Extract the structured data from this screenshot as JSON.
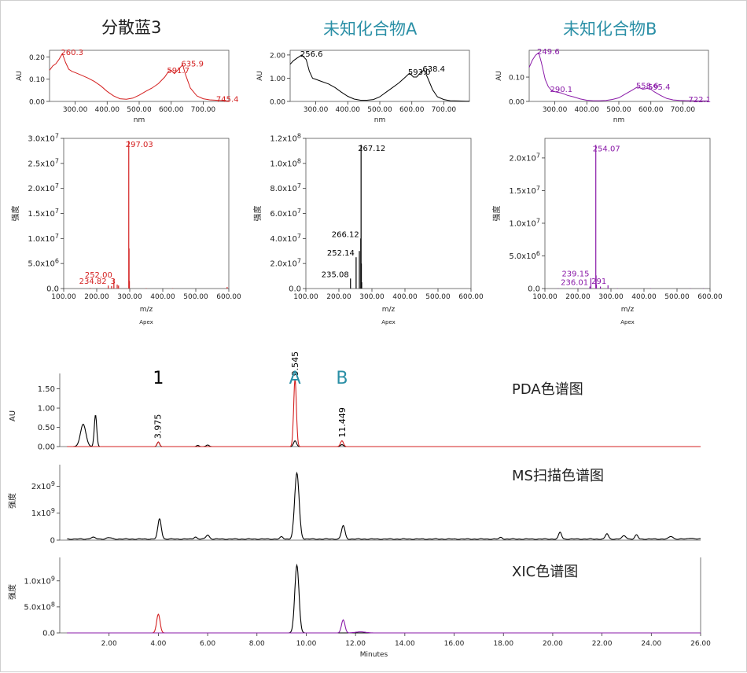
{
  "titles": {
    "col1": "分散蓝3",
    "col2": "未知化合物A",
    "col3": "未知化合物B"
  },
  "colors": {
    "red": "#d42020",
    "black": "#000000",
    "purple": "#8a1aa8",
    "teal": "#2a8fa6",
    "blue": "#3050c0"
  },
  "chart_data": [
    {
      "id": "uv1",
      "type": "line",
      "color": "red",
      "xlabel": "nm",
      "ylabel": "AU",
      "xlim": [
        220,
        780
      ],
      "ylim": [
        0,
        0.23
      ],
      "xticks": [
        300,
        400,
        500,
        600,
        700
      ],
      "xtick_labels": [
        "300.00",
        "400.00",
        "500.00",
        "600.00",
        "700.00"
      ],
      "yticks": [
        0,
        0.1,
        0.2
      ],
      "ytick_labels": [
        "0.00",
        "0.10",
        "0.20"
      ],
      "x": [
        220,
        230,
        240,
        250,
        260,
        270,
        280,
        290,
        300,
        320,
        340,
        360,
        380,
        400,
        420,
        440,
        460,
        480,
        500,
        520,
        540,
        560,
        580,
        591.7,
        600,
        610,
        620,
        635.9,
        645,
        660,
        680,
        700,
        720,
        745.4,
        770,
        780
      ],
      "y": [
        0.14,
        0.16,
        0.17,
        0.19,
        0.215,
        0.175,
        0.145,
        0.135,
        0.13,
        0.118,
        0.105,
        0.09,
        0.07,
        0.045,
        0.025,
        0.012,
        0.01,
        0.015,
        0.028,
        0.045,
        0.06,
        0.08,
        0.11,
        0.135,
        0.14,
        0.125,
        0.14,
        0.165,
        0.12,
        0.06,
        0.025,
        0.012,
        0.007,
        0.005,
        0.003,
        0.002
      ],
      "peak_labels": [
        {
          "x": 260.3,
          "y": 0.215,
          "text": "260.3"
        },
        {
          "x": 591.7,
          "y": 0.135,
          "text": "591.7"
        },
        {
          "x": 635.9,
          "y": 0.165,
          "text": "635.9"
        },
        {
          "x": 745.4,
          "y": 0.005,
          "text": "745.4"
        }
      ]
    },
    {
      "id": "uv2",
      "type": "line",
      "color": "black",
      "xlabel": "nm",
      "ylabel": "AU",
      "xlim": [
        220,
        780
      ],
      "ylim": [
        0,
        2.2
      ],
      "xticks": [
        300,
        400,
        500,
        600,
        700
      ],
      "xtick_labels": [
        "300.00",
        "400.00",
        "500.00",
        "600.00",
        "700.00"
      ],
      "yticks": [
        0,
        1,
        2
      ],
      "ytick_labels": [
        "0.00",
        "1.00",
        "2.00"
      ],
      "x": [
        220,
        230,
        240,
        256.6,
        270,
        280,
        290,
        300,
        320,
        340,
        360,
        380,
        400,
        420,
        440,
        460,
        480,
        500,
        520,
        540,
        560,
        580,
        593,
        605,
        615,
        625,
        638.4,
        650,
        665,
        680,
        700,
        720,
        745,
        770,
        780
      ],
      "y": [
        1.6,
        1.75,
        1.85,
        2.0,
        1.8,
        1.3,
        1.0,
        0.95,
        0.85,
        0.75,
        0.6,
        0.4,
        0.22,
        0.1,
        0.05,
        0.05,
        0.08,
        0.2,
        0.4,
        0.6,
        0.8,
        1.05,
        1.22,
        1.05,
        1.05,
        1.2,
        1.35,
        1.0,
        0.5,
        0.2,
        0.08,
        0.03,
        0.02,
        0.01,
        0.01
      ],
      "peak_labels": [
        {
          "x": 256.6,
          "y": 2.0,
          "text": "256.6"
        },
        {
          "x": 593.0,
          "y": 1.22,
          "text": "593.0"
        },
        {
          "x": 638.4,
          "y": 1.35,
          "text": "638.4"
        }
      ]
    },
    {
      "id": "uv3",
      "type": "line",
      "color": "purple",
      "xlabel": "nm",
      "ylabel": "AU",
      "xlim": [
        220,
        780
      ],
      "ylim": [
        0,
        0.21
      ],
      "xticks": [
        300,
        400,
        500,
        600,
        700
      ],
      "xtick_labels": [
        "300.00",
        "400.00",
        "500.00",
        "600.00",
        "700.00"
      ],
      "yticks": [
        0,
        0.1
      ],
      "ytick_labels": [
        "0.00",
        "0.10"
      ],
      "x": [
        220,
        230,
        240,
        249.6,
        258,
        270,
        280,
        290.1,
        300,
        320,
        340,
        360,
        380,
        400,
        420,
        440,
        460,
        480,
        500,
        520,
        540,
        558.6,
        575,
        595.4,
        610,
        630,
        650,
        670,
        690,
        710,
        722.1,
        750,
        780
      ],
      "y": [
        0.14,
        0.17,
        0.19,
        0.2,
        0.16,
        0.09,
        0.06,
        0.045,
        0.04,
        0.035,
        0.025,
        0.018,
        0.01,
        0.005,
        0.003,
        0.003,
        0.004,
        0.008,
        0.015,
        0.03,
        0.045,
        0.06,
        0.05,
        0.055,
        0.04,
        0.025,
        0.012,
        0.006,
        0.004,
        0.003,
        0.003,
        0.002,
        0.002
      ],
      "peak_labels": [
        {
          "x": 249.6,
          "y": 0.2,
          "text": "249.6"
        },
        {
          "x": 290.1,
          "y": 0.045,
          "text": "290.1"
        },
        {
          "x": 558.6,
          "y": 0.06,
          "text": "558.6"
        },
        {
          "x": 595.4,
          "y": 0.055,
          "text": "595.4"
        },
        {
          "x": 722.1,
          "y": 0.003,
          "text": "722.1"
        }
      ]
    },
    {
      "id": "ms1",
      "type": "bar",
      "color": "red",
      "xlabel": "m/z",
      "ylabel": "强度",
      "footer": "Apex",
      "xlim": [
        100,
        600
      ],
      "ylim": [
        0,
        30000000.0
      ],
      "xticks": [
        100,
        200,
        300,
        400,
        500,
        600
      ],
      "xtick_labels": [
        "100.00",
        "200.00",
        "300.00",
        "400.00",
        "500.00",
        "600.00"
      ],
      "yticks": [
        0,
        5000000.0,
        10000000.0,
        15000000.0,
        20000000.0,
        25000000.0,
        30000000.0
      ],
      "ytick_labels": [
        [
          "0.0",
          ""
        ],
        [
          "5.0x10",
          "6"
        ],
        [
          "1.0x10",
          "7"
        ],
        [
          "1.5x10",
          "7"
        ],
        [
          "2.0x10",
          "7"
        ],
        [
          "2.5x10",
          "7"
        ],
        [
          "3.0x10",
          "7"
        ]
      ],
      "peaks": [
        [
          180,
          100000.0
        ],
        [
          234.82,
          600000.0
        ],
        [
          245,
          500000.0
        ],
        [
          252.0,
          1900000.0
        ],
        [
          262,
          800000.0
        ],
        [
          266,
          600000.0
        ],
        [
          297.03,
          29500000.0
        ],
        [
          298,
          8000000.0
        ],
        [
          299,
          1500000.0
        ],
        [
          350,
          80000.0
        ],
        [
          430,
          50000.0
        ],
        [
          595,
          300000.0
        ]
      ],
      "peak_labels": [
        {
          "x": 297.03,
          "y": 29500000.0,
          "text": "297.03"
        },
        {
          "x": 252.0,
          "y": 1900000.0,
          "text": "252.00"
        },
        {
          "x": 234.82,
          "y": 600000.0,
          "text": "234.82"
        },
        {
          "x": 262,
          "y": 600000.0,
          "text": "3"
        }
      ]
    },
    {
      "id": "ms2",
      "type": "bar",
      "color": "black",
      "xlabel": "m/z",
      "ylabel": "强度",
      "footer": "Apex",
      "xlim": [
        100,
        600
      ],
      "ylim": [
        0,
        120000000.0
      ],
      "xticks": [
        100,
        200,
        300,
        400,
        500,
        600
      ],
      "xtick_labels": [
        "100.00",
        "200.00",
        "300.00",
        "400.00",
        "500.00",
        "600.00"
      ],
      "yticks": [
        0,
        20000000.0,
        40000000.0,
        60000000.0,
        80000000.0,
        100000000.0,
        120000000.0
      ],
      "ytick_labels": [
        [
          "0.0",
          ""
        ],
        [
          "2.0x10",
          "7"
        ],
        [
          "4.0x10",
          "7"
        ],
        [
          "6.0x10",
          "7"
        ],
        [
          "8.0x10",
          "7"
        ],
        [
          "1.0x10",
          "8"
        ],
        [
          "1.2x10",
          "8"
        ]
      ],
      "peaks": [
        [
          235.08,
          8000000.0
        ],
        [
          252.14,
          25000000.0
        ],
        [
          262,
          30000000.0
        ],
        [
          266.12,
          40000000.0
        ],
        [
          267.12,
          115000000.0
        ],
        [
          268,
          20000000.0
        ],
        [
          269,
          5000000.0
        ]
      ],
      "peak_labels": [
        {
          "x": 267.12,
          "y": 115000000.0,
          "text": "267.12"
        },
        {
          "x": 266.12,
          "y": 40000000.0,
          "text": "266.12"
        },
        {
          "x": 252.14,
          "y": 25000000.0,
          "text": "252.14"
        },
        {
          "x": 235.08,
          "y": 8000000.0,
          "text": "235.08"
        }
      ]
    },
    {
      "id": "ms3",
      "type": "bar",
      "color": "purple",
      "xlabel": "m/z",
      "ylabel": "强度",
      "footer": "Apex",
      "xlim": [
        100,
        600
      ],
      "ylim": [
        0,
        23000000.0
      ],
      "xticks": [
        100,
        200,
        300,
        400,
        500,
        600
      ],
      "xtick_labels": [
        "100.00",
        "200.00",
        "300.00",
        "400.00",
        "500.00",
        "600.00"
      ],
      "yticks": [
        0,
        5000000.0,
        10000000.0,
        15000000.0,
        20000000.0
      ],
      "ytick_labels": [
        [
          "0.0",
          ""
        ],
        [
          "5.0x10",
          "6"
        ],
        [
          "1.0x10",
          "7"
        ],
        [
          "1.5x10",
          "7"
        ],
        [
          "2.0x10",
          "7"
        ]
      ],
      "peaks": [
        [
          140,
          50000.0
        ],
        [
          200,
          50000.0
        ],
        [
          236.01,
          300000.0
        ],
        [
          239.15,
          1600000.0
        ],
        [
          254.07,
          22000000.0
        ],
        [
          255,
          2000000.0
        ],
        [
          256,
          600000.0
        ],
        [
          268,
          300000.0
        ],
        [
          291,
          500000.0
        ],
        [
          320,
          50000.0
        ],
        [
          420,
          50000.0
        ],
        [
          540,
          50000.0
        ],
        [
          580,
          50000.0
        ]
      ],
      "peak_labels": [
        {
          "x": 254.07,
          "y": 22000000.0,
          "text": "254.07"
        },
        {
          "x": 239.15,
          "y": 1600000.0,
          "text": "239.15"
        },
        {
          "x": 236.01,
          "y": 300000.0,
          "text": "236.01"
        },
        {
          "x": 291,
          "y": 500000.0,
          "text": "291"
        }
      ]
    },
    {
      "id": "pda",
      "type": "line",
      "ylabel": "AU",
      "label": "PDA色谱图",
      "xlim": [
        0,
        26
      ],
      "ylim": [
        0,
        1.9
      ],
      "yticks": [
        0,
        0.5,
        1.0,
        1.5
      ],
      "ytick_labels": [
        "0.00",
        "0.50",
        "1.00",
        "1.50"
      ],
      "series": [
        {
          "color": "black",
          "peaks": [
            [
              0.95,
              0.58,
              0.11
            ],
            [
              1.45,
              0.82,
              0.05
            ],
            [
              4.0,
              0.12,
              0.05
            ],
            [
              5.6,
              0.03,
              0.05
            ],
            [
              6.0,
              0.04,
              0.06
            ],
            [
              9.545,
              0.15,
              0.06
            ],
            [
              11.449,
              0.05,
              0.06
            ]
          ],
          "baseline": 0
        },
        {
          "color": "red",
          "peaks": [
            [
              4.0,
              0.12,
              0.05
            ],
            [
              9.545,
              1.75,
              0.055
            ],
            [
              11.449,
              0.15,
              0.06
            ]
          ],
          "baseline": 0
        }
      ],
      "peak_labels": [
        {
          "x": 3.975,
          "y": 0.12,
          "text": "3.975"
        },
        {
          "x": 9.545,
          "y": 1.75,
          "text": "9.545"
        },
        {
          "x": 11.449,
          "y": 0.15,
          "text": "11.449"
        }
      ],
      "markers": [
        {
          "x": 4.0,
          "text": "1",
          "color": "black"
        },
        {
          "x": 9.545,
          "text": "A",
          "color": "teal"
        },
        {
          "x": 11.449,
          "text": "B",
          "color": "teal"
        }
      ]
    },
    {
      "id": "msscan",
      "type": "line",
      "ylabel": "强度",
      "label": "MS扫描色谱图",
      "xlim": [
        0,
        26
      ],
      "ylim": [
        0,
        2800000000.0
      ],
      "yticks": [
        0,
        1000000000.0,
        2000000000.0
      ],
      "ytick_labels": [
        [
          "0",
          ""
        ],
        [
          "1x10",
          "9"
        ],
        [
          "2x10",
          "9"
        ]
      ],
      "series": [
        {
          "color": "black",
          "peaks": [
            [
              1.35,
              60000000.0,
              0.1
            ],
            [
              2.0,
              50000000.0,
              0.1
            ],
            [
              4.05,
              750000000.0,
              0.07
            ],
            [
              5.5,
              80000000.0,
              0.06
            ],
            [
              6.0,
              150000000.0,
              0.07
            ],
            [
              9.0,
              80000000.0,
              0.06
            ],
            [
              9.62,
              2450000000.0,
              0.09
            ],
            [
              11.5,
              500000000.0,
              0.07
            ],
            [
              17.9,
              60000000.0,
              0.06
            ],
            [
              20.3,
              250000000.0,
              0.06
            ],
            [
              22.2,
              200000000.0,
              0.06
            ],
            [
              22.9,
              120000000.0,
              0.08
            ],
            [
              23.4,
              150000000.0,
              0.06
            ],
            [
              24.8,
              100000000.0,
              0.08
            ],
            [
              25.6,
              40000000.0,
              0.08
            ]
          ],
          "baseline": 40000000.0
        }
      ]
    },
    {
      "id": "xic",
      "type": "line",
      "ylabel": "强度",
      "label": "XIC色谱图",
      "xlabel": "Minutes",
      "xlim": [
        0,
        26
      ],
      "ylim": [
        0,
        1450000000.0
      ],
      "xticks": [
        2,
        4,
        6,
        8,
        10,
        12,
        14,
        16,
        18,
        20,
        22,
        24,
        26
      ],
      "xtick_labels": [
        "2.00",
        "4.00",
        "6.00",
        "8.00",
        "10.00",
        "12.00",
        "14.00",
        "16.00",
        "18.00",
        "20.00",
        "22.00",
        "24.00",
        "26.00"
      ],
      "yticks": [
        0,
        500000000.0,
        1000000000.0
      ],
      "ytick_labels": [
        [
          "0.0",
          ""
        ],
        [
          "5.0x10",
          "8"
        ],
        [
          "1.0x10",
          "9"
        ]
      ],
      "series": [
        {
          "color": "red",
          "peaks": [
            [
              4.0,
              360000000.0,
              0.07
            ]
          ],
          "baseline": 0
        },
        {
          "color": "black",
          "peaks": [
            [
              9.62,
              1300000000.0,
              0.085
            ]
          ],
          "baseline": 0
        },
        {
          "color": "purple",
          "peaks": [
            [
              11.5,
              250000000.0,
              0.07
            ],
            [
              12.2,
              20000000.0,
              0.2
            ]
          ],
          "baseline": 0
        }
      ]
    }
  ]
}
